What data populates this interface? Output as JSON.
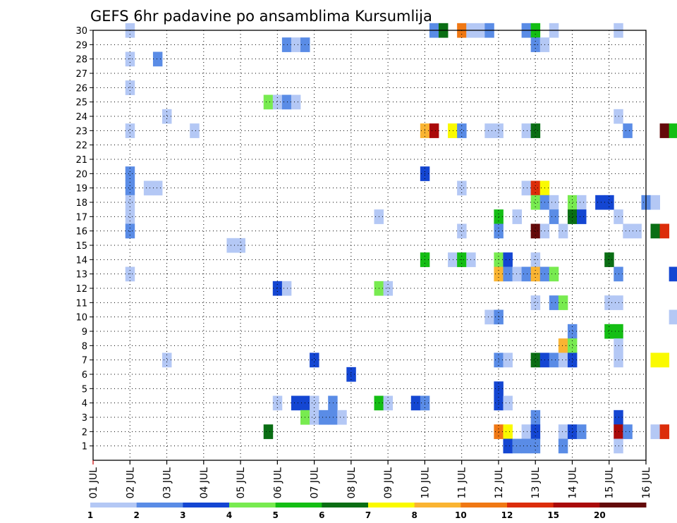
{
  "chart_data": {
    "type": "heatmap",
    "title": "GEFS 6hr padavine po ansamblima Kursumlija",
    "xlabel": "",
    "ylabel": "",
    "x_ticks": [
      "01 JUL",
      "02 JUL",
      "03 JUL",
      "04 JUL",
      "05 JUL",
      "06 JUL",
      "07 JUL",
      "08 JUL",
      "09 JUL",
      "10 JUL",
      "11 JUL",
      "12 JUL",
      "13 JUL",
      "14 JUL",
      "15 JUL",
      "16 JUL"
    ],
    "y_ticks": [
      "1",
      "2",
      "3",
      "4",
      "5",
      "6",
      "7",
      "8",
      "9",
      "10",
      "11",
      "12",
      "13",
      "14",
      "15",
      "16",
      "17",
      "18",
      "19",
      "20",
      "21",
      "22",
      "23",
      "24",
      "25",
      "26",
      "27",
      "28",
      "29",
      "30"
    ],
    "xlim": [
      1,
      16
    ],
    "ylim": [
      0,
      30
    ],
    "grid": true,
    "colorbar": {
      "labels": [
        "1",
        "2",
        "3",
        "4",
        "5",
        "6",
        "7",
        "8",
        "10",
        "12",
        "15",
        "20"
      ],
      "colors": [
        "#b4c8f5",
        "#5a8ce6",
        "#1446d2",
        "#78eb50",
        "#14be14",
        "#0a6e14",
        "#fafa00",
        "#fab432",
        "#f07814",
        "#dc2d0a",
        "#aa0a0a",
        "#640a0a"
      ]
    },
    "cells": [
      [
        2,
        30,
        1
      ],
      [
        10.25,
        30,
        2
      ],
      [
        10.5,
        30,
        6
      ],
      [
        11,
        30,
        9
      ],
      [
        11.25,
        30,
        1
      ],
      [
        11.5,
        30,
        1
      ],
      [
        11.75,
        30,
        2
      ],
      [
        12.75,
        30,
        2
      ],
      [
        13,
        30,
        5
      ],
      [
        13.5,
        30,
        1
      ],
      [
        15.25,
        30,
        1
      ],
      [
        6.25,
        29,
        2
      ],
      [
        6.5,
        29,
        1
      ],
      [
        6.75,
        29,
        2
      ],
      [
        13,
        29,
        2
      ],
      [
        13.25,
        29,
        1
      ],
      [
        2,
        28,
        1
      ],
      [
        2.75,
        28,
        2
      ],
      [
        2,
        26,
        1
      ],
      [
        5.75,
        25,
        4
      ],
      [
        6,
        25,
        1
      ],
      [
        6.25,
        25,
        2
      ],
      [
        6.5,
        25,
        1
      ],
      [
        3,
        24,
        1
      ],
      [
        15.25,
        24,
        1
      ],
      [
        2,
        23,
        1
      ],
      [
        3.75,
        23,
        1
      ],
      [
        10,
        23,
        8
      ],
      [
        10.25,
        23,
        11
      ],
      [
        10.75,
        23,
        7
      ],
      [
        11,
        23,
        2
      ],
      [
        11.75,
        23,
        1
      ],
      [
        12,
        23,
        1
      ],
      [
        12.75,
        23,
        1
      ],
      [
        13,
        23,
        6
      ],
      [
        15.5,
        23,
        2
      ],
      [
        16.5,
        23,
        12
      ],
      [
        16.75,
        23,
        5
      ],
      [
        2,
        20,
        2
      ],
      [
        10,
        20,
        3
      ],
      [
        2,
        19,
        2
      ],
      [
        2.5,
        19,
        1
      ],
      [
        2.75,
        19,
        1
      ],
      [
        11,
        19,
        1
      ],
      [
        12.75,
        19,
        1
      ],
      [
        13,
        19,
        10
      ],
      [
        13.25,
        19,
        7
      ],
      [
        2,
        18,
        1
      ],
      [
        13,
        18,
        4
      ],
      [
        13.25,
        18,
        2
      ],
      [
        13.5,
        18,
        1
      ],
      [
        14,
        18,
        4
      ],
      [
        14.25,
        18,
        1
      ],
      [
        14.75,
        18,
        3
      ],
      [
        15,
        18,
        3
      ],
      [
        16,
        18,
        2
      ],
      [
        16.25,
        18,
        1
      ],
      [
        2,
        17,
        1
      ],
      [
        8.75,
        17,
        1
      ],
      [
        12,
        17,
        5
      ],
      [
        12.5,
        17,
        1
      ],
      [
        13.5,
        17,
        2
      ],
      [
        14,
        17,
        6
      ],
      [
        14.25,
        17,
        3
      ],
      [
        15.25,
        17,
        1
      ],
      [
        2,
        16,
        2
      ],
      [
        11,
        16,
        1
      ],
      [
        12,
        16,
        2
      ],
      [
        13,
        16,
        12
      ],
      [
        13.25,
        16,
        1
      ],
      [
        13.75,
        16,
        1
      ],
      [
        15.5,
        16,
        1
      ],
      [
        15.75,
        16,
        1
      ],
      [
        16.25,
        16,
        6
      ],
      [
        16.5,
        16,
        10
      ],
      [
        4.75,
        15,
        1
      ],
      [
        5,
        15,
        1
      ],
      [
        10,
        14,
        5
      ],
      [
        10.75,
        14,
        1
      ],
      [
        11,
        14,
        5
      ],
      [
        11.25,
        14,
        1
      ],
      [
        12,
        14,
        4
      ],
      [
        12.25,
        14,
        3
      ],
      [
        13,
        14,
        1
      ],
      [
        15,
        14,
        6
      ],
      [
        2,
        13,
        1
      ],
      [
        12,
        13,
        8
      ],
      [
        12.25,
        13,
        2
      ],
      [
        12.5,
        13,
        1
      ],
      [
        12.75,
        13,
        2
      ],
      [
        13,
        13,
        8
      ],
      [
        13.25,
        13,
        2
      ],
      [
        13.5,
        13,
        4
      ],
      [
        15.25,
        13,
        2
      ],
      [
        16.75,
        13,
        3
      ],
      [
        6,
        12,
        3
      ],
      [
        6.25,
        12,
        1
      ],
      [
        8.75,
        12,
        4
      ],
      [
        9,
        12,
        1
      ],
      [
        13,
        11,
        1
      ],
      [
        13.5,
        11,
        2
      ],
      [
        13.75,
        11,
        4
      ],
      [
        15,
        11,
        1
      ],
      [
        15.25,
        11,
        1
      ],
      [
        11.75,
        10,
        1
      ],
      [
        12,
        10,
        2
      ],
      [
        16.75,
        10,
        1
      ],
      [
        14,
        9,
        2
      ],
      [
        15,
        9,
        5
      ],
      [
        15.25,
        9,
        5
      ],
      [
        13.75,
        8,
        8
      ],
      [
        14,
        8,
        4
      ],
      [
        15.25,
        8,
        1
      ],
      [
        3,
        7,
        1
      ],
      [
        7,
        7,
        3
      ],
      [
        12,
        7,
        2
      ],
      [
        12.25,
        7,
        1
      ],
      [
        13,
        7,
        6
      ],
      [
        13.25,
        7,
        3
      ],
      [
        13.5,
        7,
        2
      ],
      [
        13.75,
        7,
        1
      ],
      [
        14,
        7,
        3
      ],
      [
        15.25,
        7,
        1
      ],
      [
        16.25,
        7,
        7
      ],
      [
        16.5,
        7,
        7
      ],
      [
        8,
        6,
        3
      ],
      [
        12,
        5,
        3
      ],
      [
        6,
        4,
        1
      ],
      [
        6.5,
        4,
        3
      ],
      [
        6.75,
        4,
        3
      ],
      [
        7,
        4,
        1
      ],
      [
        7.5,
        4,
        2
      ],
      [
        8.75,
        4,
        5
      ],
      [
        9,
        4,
        1
      ],
      [
        9.75,
        4,
        3
      ],
      [
        10,
        4,
        2
      ],
      [
        12,
        4,
        3
      ],
      [
        12.25,
        4,
        1
      ],
      [
        6.75,
        3,
        4
      ],
      [
        7,
        3,
        1
      ],
      [
        7.25,
        3,
        2
      ],
      [
        7.5,
        3,
        2
      ],
      [
        7.75,
        3,
        1
      ],
      [
        13,
        3,
        2
      ],
      [
        15.25,
        3,
        3
      ],
      [
        5.75,
        2,
        6
      ],
      [
        12,
        2,
        9
      ],
      [
        12.25,
        2,
        7
      ],
      [
        12.75,
        2,
        1
      ],
      [
        13,
        2,
        3
      ],
      [
        13.75,
        2,
        1
      ],
      [
        14,
        2,
        3
      ],
      [
        14.25,
        2,
        2
      ],
      [
        15.25,
        2,
        11
      ],
      [
        15.5,
        2,
        2
      ],
      [
        16.25,
        2,
        1
      ],
      [
        16.5,
        2,
        10
      ],
      [
        12.25,
        1,
        3
      ],
      [
        12.5,
        1,
        2
      ],
      [
        12.75,
        1,
        2
      ],
      [
        13,
        1,
        2
      ],
      [
        13.75,
        1,
        2
      ],
      [
        15.25,
        1,
        1
      ]
    ]
  }
}
